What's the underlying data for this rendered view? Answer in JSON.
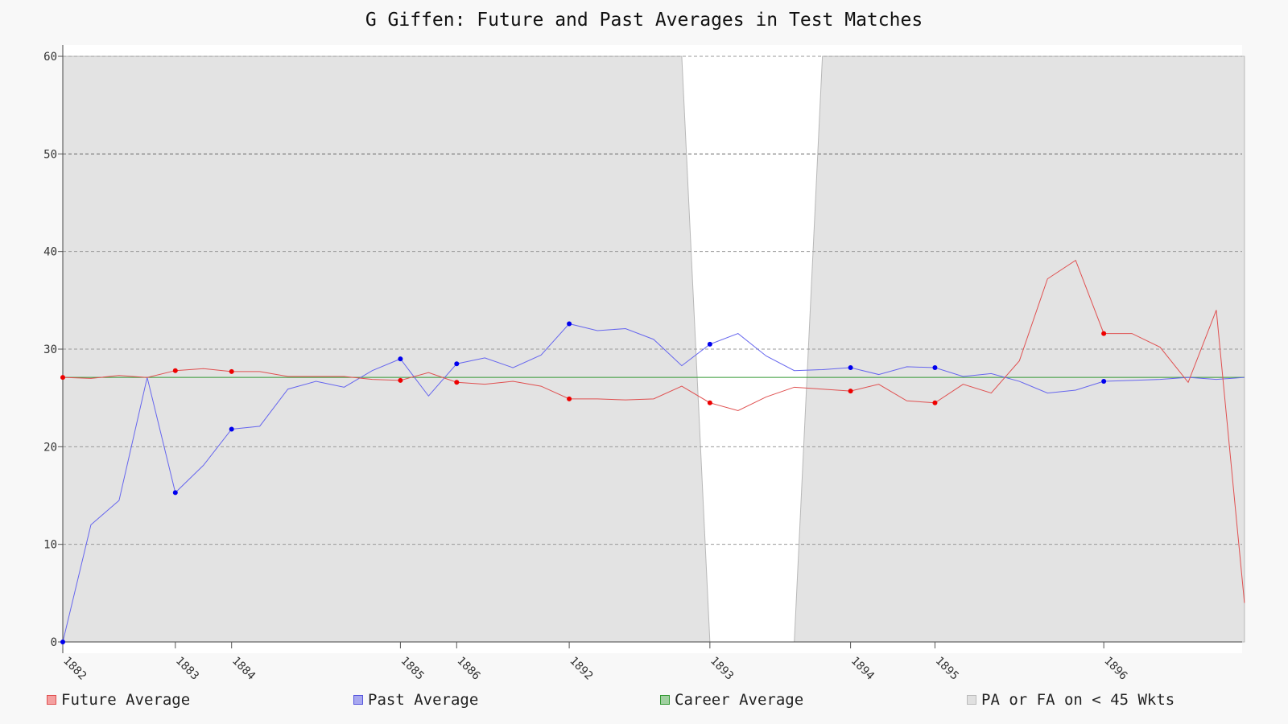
{
  "chart_data": {
    "type": "line",
    "title": "G Giffen: Future and Past Averages in Test Matches",
    "ylim": [
      0,
      60
    ],
    "y_ticks": [
      "0",
      "10",
      "20",
      "30",
      "40",
      "50",
      "60"
    ],
    "x_ticks": [
      {
        "label": "1882",
        "index": 0
      },
      {
        "label": "1883",
        "index": 4
      },
      {
        "label": "1884",
        "index": 6
      },
      {
        "label": "1885",
        "index": 12
      },
      {
        "label": "1886",
        "index": 14
      },
      {
        "label": "1892",
        "index": 18
      },
      {
        "label": "1893",
        "index": 23
      },
      {
        "label": "1894",
        "index": 28
      },
      {
        "label": "1895",
        "index": 31
      },
      {
        "label": "1896",
        "index": 37
      }
    ],
    "grid": true,
    "legend_placement": "bottom",
    "series": [
      {
        "name": "Future Average",
        "color": "#e05050",
        "marker_color": "#ee0000",
        "values": [
          27.1,
          27.0,
          27.3,
          27.1,
          27.8,
          28.0,
          27.7,
          27.7,
          27.2,
          27.2,
          27.2,
          26.9,
          26.8,
          27.6,
          26.6,
          26.4,
          26.7,
          26.2,
          24.9,
          24.9,
          24.8,
          24.9,
          26.2,
          24.5,
          23.7,
          25.1,
          26.1,
          25.9,
          25.7,
          26.4,
          24.7,
          24.5,
          26.4,
          25.5,
          28.8,
          37.2,
          39.1,
          31.6,
          31.6,
          30.2,
          26.6,
          34.0,
          4.0
        ],
        "markers": [
          0,
          4,
          6,
          12,
          14,
          18,
          23,
          28,
          31,
          37
        ]
      },
      {
        "name": "Past Average",
        "color": "#6666ee",
        "marker_color": "#0000ee",
        "values": [
          0.0,
          12.0,
          14.5,
          27.1,
          15.3,
          18.1,
          21.8,
          22.1,
          25.9,
          26.7,
          26.1,
          27.8,
          29.0,
          25.2,
          28.5,
          29.1,
          28.1,
          29.4,
          32.6,
          31.9,
          32.1,
          31.0,
          28.3,
          30.5,
          31.6,
          29.3,
          27.8,
          27.9,
          28.1,
          27.4,
          28.2,
          28.1,
          27.2,
          27.5,
          26.7,
          25.5,
          25.8,
          26.7,
          26.8,
          26.9,
          27.1,
          26.9,
          27.1
        ],
        "markers": [
          0,
          4,
          6,
          12,
          14,
          18,
          23,
          28,
          31,
          37
        ]
      },
      {
        "name": "Career Average",
        "color": "#339933",
        "value": 27.1
      }
    ],
    "shaded_region": {
      "name": "PA or FA on < 45 Wkts",
      "color": "#e3e3e3",
      "values": [
        60,
        60,
        60,
        60,
        60,
        60,
        60,
        60,
        60,
        60,
        60,
        60,
        60,
        60,
        60,
        60,
        60,
        60,
        60,
        60,
        60,
        60,
        60,
        0,
        0,
        0,
        0,
        60,
        60,
        60,
        60,
        60,
        60,
        60,
        60,
        60,
        60,
        60,
        60,
        60,
        60,
        60,
        60
      ]
    },
    "legend": [
      {
        "label": "Future Average",
        "fill": "#f4a0a0",
        "stroke": "#e05050"
      },
      {
        "label": "Past Average",
        "fill": "#a8a8f0",
        "stroke": "#5555dd"
      },
      {
        "label": "Career Average",
        "fill": "#a0d0a0",
        "stroke": "#339933"
      },
      {
        "label": "PA or FA on < 45 Wkts",
        "fill": "#e0e0e0",
        "stroke": "#bbbbbb"
      }
    ]
  }
}
